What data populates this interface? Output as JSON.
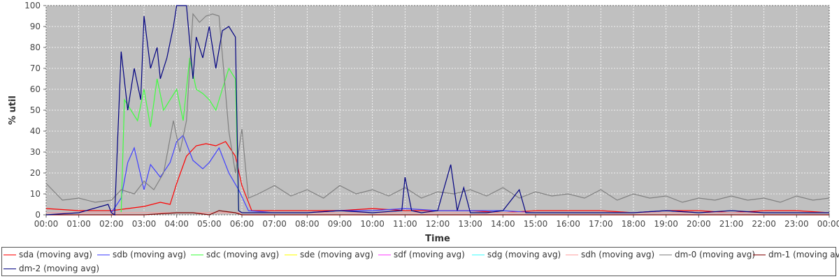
{
  "chart_data": {
    "type": "line",
    "xlabel": "Time",
    "ylabel": "% util",
    "ylim": [
      0,
      100
    ],
    "yticks": [
      0,
      10,
      20,
      30,
      40,
      50,
      60,
      70,
      80,
      90,
      100
    ],
    "xticks": [
      "00:00",
      "01:00",
      "02:00",
      "03:00",
      "04:00",
      "05:00",
      "06:00",
      "07:00",
      "08:00",
      "09:00",
      "10:00",
      "11:00",
      "12:00",
      "13:00",
      "14:00",
      "15:00",
      "16:00",
      "17:00",
      "18:00",
      "19:00",
      "20:00",
      "21:00",
      "22:00",
      "23:00",
      "00:00"
    ],
    "x_unit": "hours",
    "grid": true,
    "legend_position": "bottom",
    "background_color": "#c0c0c0",
    "series": [
      {
        "name": "sda (moving avg)",
        "color": "#ff0000",
        "x": [
          0,
          1,
          2,
          2.5,
          3,
          3.5,
          3.8,
          4.0,
          4.3,
          4.6,
          4.9,
          5.2,
          5.5,
          5.8,
          6.0,
          6.3,
          7,
          8,
          9,
          10,
          11,
          12,
          13,
          14,
          15,
          16,
          17,
          18,
          19,
          20,
          21,
          22,
          23,
          24
        ],
        "y": [
          3,
          2,
          2,
          3,
          4,
          6,
          5,
          15,
          28,
          33,
          34,
          33,
          35,
          28,
          14,
          2,
          2,
          2,
          2,
          3,
          2,
          2,
          2,
          1,
          2,
          2,
          2,
          1,
          2,
          2,
          1,
          2,
          2,
          1
        ]
      },
      {
        "name": "sdb (moving avg)",
        "color": "#4040ff",
        "x": [
          0,
          1,
          2,
          2.3,
          2.5,
          2.7,
          3,
          3.2,
          3.5,
          3.8,
          4.0,
          4.2,
          4.5,
          4.8,
          5.0,
          5.3,
          5.6,
          5.9,
          6.2,
          7,
          8,
          9,
          10,
          11,
          12,
          13,
          14,
          15,
          16,
          17,
          18,
          19,
          20,
          21,
          22,
          23,
          24
        ],
        "y": [
          1,
          1,
          1,
          8,
          25,
          32,
          12,
          24,
          18,
          25,
          35,
          38,
          26,
          22,
          25,
          32,
          20,
          12,
          2,
          1,
          1,
          2,
          2,
          3,
          2,
          2,
          2,
          1,
          1,
          1,
          1,
          2,
          1,
          1,
          1,
          1,
          1
        ]
      },
      {
        "name": "sdc (moving avg)",
        "color": "#40ff40",
        "x": [
          2.3,
          2.4,
          2.6,
          2.8,
          3.0,
          3.2,
          3.4,
          3.6,
          3.8,
          4.0,
          4.2,
          4.4,
          4.6,
          4.8,
          5.0,
          5.2,
          5.4,
          5.6,
          5.8,
          5.9
        ],
        "y": [
          1,
          55,
          50,
          45,
          60,
          42,
          65,
          50,
          55,
          60,
          45,
          75,
          60,
          58,
          55,
          50,
          60,
          70,
          65,
          2
        ]
      },
      {
        "name": "sde (moving avg)",
        "color": "#ffff00",
        "x": [
          0,
          6,
          12,
          18,
          24
        ],
        "y": [
          1,
          1,
          1,
          1,
          1
        ]
      },
      {
        "name": "sdf (moving avg)",
        "color": "#ff40ff",
        "x": [
          0,
          6,
          12,
          18,
          24
        ],
        "y": [
          1,
          1,
          1,
          1,
          1
        ]
      },
      {
        "name": "sdg (moving avg)",
        "color": "#40ffff",
        "x": [
          0,
          6,
          12,
          18,
          24
        ],
        "y": [
          1,
          1,
          1,
          1,
          1
        ]
      },
      {
        "name": "sdh (moving avg)",
        "color": "#ffa0a0",
        "x": [
          0,
          6,
          12,
          18,
          24
        ],
        "y": [
          1,
          1,
          1,
          1,
          1
        ]
      },
      {
        "name": "dm-0 (moving avg)",
        "color": "#808080",
        "x": [
          0,
          0.5,
          1,
          1.5,
          2,
          2.3,
          2.7,
          3,
          3.3,
          3.6,
          3.9,
          4.1,
          4.3,
          4.5,
          4.7,
          4.9,
          5.1,
          5.3,
          5.6,
          5.8,
          6.0,
          6.2,
          6.5,
          7,
          7.5,
          8,
          8.5,
          9,
          9.5,
          10,
          10.5,
          11,
          11.5,
          12,
          12.5,
          13,
          13.5,
          14,
          14.5,
          15,
          15.5,
          16,
          16.5,
          17,
          17.5,
          18,
          18.5,
          19,
          19.5,
          20,
          20.5,
          21,
          21.5,
          22,
          22.5,
          23,
          23.5,
          24
        ],
        "y": [
          15,
          7,
          8,
          6,
          7,
          12,
          10,
          16,
          12,
          20,
          45,
          30,
          45,
          96,
          92,
          95,
          96,
          95,
          40,
          20,
          41,
          8,
          10,
          14,
          9,
          12,
          8,
          14,
          10,
          12,
          9,
          13,
          8,
          11,
          10,
          12,
          9,
          13,
          8,
          11,
          9,
          10,
          8,
          12,
          7,
          10,
          8,
          9,
          6,
          8,
          7,
          9,
          7,
          8,
          6,
          9,
          7,
          8
        ]
      },
      {
        "name": "dm-1 (moving avg)",
        "color": "#800000",
        "x": [
          0,
          3,
          4,
          4.5,
          5,
          5.3,
          5.8,
          6,
          12,
          18,
          24
        ],
        "y": [
          0,
          0,
          1,
          1,
          0,
          2,
          1,
          0,
          0,
          0,
          0
        ]
      },
      {
        "name": "dm-2 (moving avg)",
        "color": "#000080",
        "x": [
          0,
          1,
          1.9,
          2.0,
          2.1,
          2.3,
          2.5,
          2.7,
          2.9,
          3.0,
          3.2,
          3.4,
          3.5,
          3.7,
          3.9,
          4.0,
          4.3,
          4.5,
          4.6,
          4.8,
          5.0,
          5.2,
          5.4,
          5.6,
          5.8,
          5.9,
          6.0,
          7,
          8,
          9,
          10,
          10.9,
          11.0,
          11.2,
          11.5,
          12,
          12.4,
          12.6,
          12.8,
          13,
          13.5,
          14,
          14.5,
          14.7,
          15,
          16,
          17,
          18,
          19,
          20,
          21,
          22,
          23,
          24
        ],
        "y": [
          0,
          1,
          5,
          1,
          0,
          78,
          50,
          70,
          55,
          95,
          70,
          80,
          65,
          75,
          90,
          100,
          100,
          65,
          85,
          75,
          90,
          70,
          88,
          90,
          85,
          2,
          1,
          1,
          1,
          2,
          1,
          2,
          18,
          2,
          1,
          2,
          24,
          2,
          13,
          1,
          1,
          2,
          12,
          1,
          1,
          1,
          1,
          1,
          2,
          1,
          2,
          1,
          1,
          1
        ]
      }
    ]
  }
}
